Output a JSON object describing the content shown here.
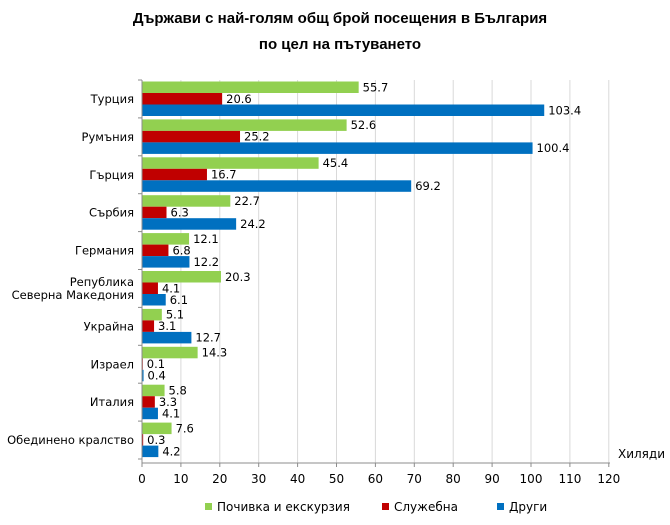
{
  "chart_data": {
    "type": "bar",
    "orientation": "horizontal",
    "title_lines": [
      "Държави с най-голям общ брой посещения в България",
      "по цел на пътуването"
    ],
    "unit_label": "Хиляди",
    "categories": [
      [
        "Турция"
      ],
      [
        "Румъния"
      ],
      [
        "Гърция"
      ],
      [
        "Сърбия"
      ],
      [
        "Германия"
      ],
      [
        "Република",
        "Северна Македония"
      ],
      [
        "Украйна"
      ],
      [
        "Израел"
      ],
      [
        "Италия"
      ],
      [
        "Обединено кралство"
      ]
    ],
    "series": [
      {
        "name": "Почивка и екскурзия",
        "color": "#92d050",
        "values": [
          55.7,
          52.6,
          45.4,
          22.7,
          12.1,
          20.3,
          5.1,
          14.3,
          5.8,
          7.6
        ],
        "labels": [
          "55.7",
          "52.6",
          "45.4",
          "22.7",
          "12.1",
          "20.3",
          "5.1",
          "14.3",
          "5.8",
          "7.6"
        ]
      },
      {
        "name": "Служебна",
        "color": "#c00000",
        "values": [
          20.6,
          25.2,
          16.7,
          6.3,
          6.8,
          4.1,
          3.1,
          0.1,
          3.3,
          0.3
        ],
        "labels": [
          "20.6",
          "25.2",
          "16.7",
          "6.3",
          "6.8",
          "4.1",
          "3.1",
          "0.1",
          "3.3",
          "0.3"
        ]
      },
      {
        "name": "Други",
        "color": "#0070c0",
        "values": [
          103.4,
          100.4,
          69.2,
          24.2,
          12.2,
          6.1,
          12.7,
          0.4,
          4.1,
          4.2
        ],
        "labels": [
          "103.4",
          "100.4",
          "69.2",
          "24.2",
          "12.2",
          "6.1",
          "12.7",
          "0.4",
          "4.1",
          "4.2"
        ]
      }
    ],
    "xlim": [
      0,
      120
    ],
    "xticks": [
      0,
      10,
      20,
      30,
      40,
      50,
      60,
      70,
      80,
      90,
      100,
      110,
      120
    ],
    "xtick_labels": [
      "0",
      "10",
      "20",
      "30",
      "40",
      "50",
      "60",
      "70",
      "80",
      "90",
      "100",
      "110",
      "120"
    ],
    "grid": true,
    "legend_position": "bottom"
  }
}
